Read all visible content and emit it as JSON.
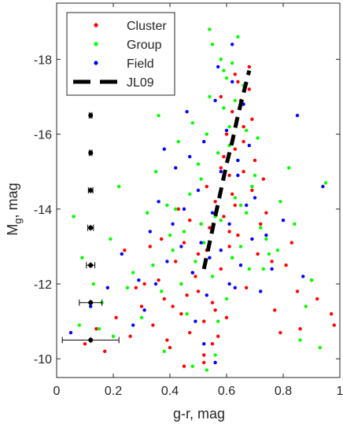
{
  "chart_data": {
    "type": "scatter",
    "xlabel": "g-r, mag",
    "ylabel_main": "M",
    "ylabel_sub": "g",
    "ylabel_tail": ", mag",
    "xlim": [
      0,
      1
    ],
    "ylim": [
      -9.5,
      -19.5
    ],
    "y_reversed": true,
    "xticks": [
      0,
      0.2,
      0.4,
      0.6,
      0.8,
      1
    ],
    "xtick_labels": [
      "0",
      "0.2",
      "0.4",
      "0.6",
      "0.8",
      "1"
    ],
    "yticks": [
      -10,
      -12,
      -14,
      -16,
      -18
    ],
    "ytick_labels": [
      "-10",
      "-12",
      "-14",
      "-16",
      "-18"
    ],
    "grid": false,
    "legend_position": "top-left",
    "series": [
      {
        "name": "Cluster",
        "marker": "dot",
        "color": "#ff0000",
        "x": [
          0.1,
          0.14,
          0.17,
          0.21,
          0.26,
          0.3,
          0.34,
          0.36,
          0.38,
          0.4,
          0.42,
          0.44,
          0.45,
          0.47,
          0.48,
          0.5,
          0.51,
          0.52,
          0.53,
          0.55,
          0.56,
          0.57,
          0.58,
          0.59,
          0.6,
          0.61,
          0.62,
          0.63,
          0.64,
          0.66,
          0.67,
          0.69,
          0.71,
          0.74,
          0.77,
          0.81,
          0.86,
          0.92,
          0.98,
          0.31,
          0.37,
          0.43,
          0.46,
          0.49,
          0.54,
          0.58,
          0.62,
          0.65,
          0.7,
          0.76,
          0.83,
          0.28,
          0.39,
          0.52,
          0.6,
          0.68,
          0.73,
          0.9,
          0.33,
          0.5,
          0.56,
          0.63,
          0.72,
          0.85,
          0.97,
          0.24,
          0.41,
          0.47,
          0.55,
          0.66,
          0.79,
          0.44,
          0.53,
          0.61,
          0.69,
          0.58,
          0.64,
          0.62,
          0.66,
          0.68,
          0.63,
          0.65,
          0.59,
          0.61,
          0.45,
          0.52
        ],
        "y": [
          -10.4,
          -10.8,
          -10.2,
          -11.1,
          -10.6,
          -11.4,
          -10.9,
          -12.1,
          -11.6,
          -10.3,
          -12.6,
          -11.2,
          -13.1,
          -10.7,
          -12.3,
          -11.8,
          -13.6,
          -10.1,
          -12.9,
          -11.5,
          -14.2,
          -10.6,
          -12.4,
          -13.8,
          -11.1,
          -14.9,
          -12.7,
          -15.6,
          -13.3,
          -16.2,
          -11.9,
          -14.5,
          -12.8,
          -13.9,
          -11.3,
          -12.5,
          -10.8,
          -11.6,
          -10.9,
          -12.0,
          -13.2,
          -14.0,
          -11.7,
          -12.2,
          -13.5,
          -15.1,
          -14.4,
          -16.8,
          -15.3,
          -12.6,
          -13.1,
          -11.9,
          -10.5,
          -11.0,
          -16.0,
          -17.2,
          -14.8,
          -12.1,
          -13.0,
          -12.8,
          -11.3,
          -17.6,
          -13.6,
          -11.8,
          -11.2,
          -12.9,
          -11.4,
          -13.7,
          -10.4,
          -15.0,
          -10.7,
          -12.0,
          -14.6,
          -13.4,
          -16.4,
          -17.0,
          -17.4,
          -16.6,
          -15.8,
          -17.8,
          -14.1,
          -16.9,
          -15.4,
          -13.0,
          -9.8,
          -9.9
        ]
      },
      {
        "name": "Group",
        "marker": "dot",
        "color": "#00ff00",
        "x": [
          0.06,
          0.09,
          0.13,
          0.16,
          0.19,
          0.22,
          0.27,
          0.32,
          0.35,
          0.37,
          0.39,
          0.41,
          0.43,
          0.45,
          0.46,
          0.48,
          0.49,
          0.51,
          0.52,
          0.54,
          0.55,
          0.57,
          0.58,
          0.59,
          0.6,
          0.62,
          0.63,
          0.64,
          0.65,
          0.67,
          0.68,
          0.7,
          0.72,
          0.75,
          0.79,
          0.84,
          0.9,
          0.95,
          0.08,
          0.25,
          0.34,
          0.4,
          0.47,
          0.5,
          0.53,
          0.56,
          0.61,
          0.66,
          0.71,
          0.78,
          0.88,
          0.2,
          0.3,
          0.42,
          0.58,
          0.63,
          0.74,
          0.93,
          0.36,
          0.55,
          0.6,
          0.69,
          0.82,
          0.15,
          0.44,
          0.51,
          0.57,
          0.62,
          0.67,
          0.86,
          0.38,
          0.48,
          0.64,
          0.73,
          0.54,
          0.59,
          0.61,
          0.65,
          0.56,
          0.53
        ],
        "y": [
          -13.8,
          -12.7,
          -12.0,
          -11.5,
          -13.2,
          -14.6,
          -12.3,
          -13.9,
          -15.0,
          -11.8,
          -14.1,
          -12.9,
          -15.8,
          -13.4,
          -11.2,
          -16.3,
          -12.6,
          -14.8,
          -13.1,
          -17.0,
          -12.2,
          -15.5,
          -13.7,
          -16.7,
          -11.6,
          -17.9,
          -14.3,
          -18.6,
          -13.0,
          -16.1,
          -12.4,
          -14.9,
          -13.5,
          -12.8,
          -14.2,
          -13.6,
          -12.1,
          -14.7,
          -10.9,
          -11.9,
          -12.5,
          -13.3,
          -14.4,
          -15.2,
          -16.0,
          -13.8,
          -15.7,
          -17.3,
          -15.9,
          -12.9,
          -11.4,
          -10.6,
          -11.1,
          -14.0,
          -18.0,
          -16.9,
          -13.2,
          -10.3,
          -16.5,
          -18.4,
          -17.5,
          -14.6,
          -15.1,
          -10.8,
          -12.0,
          -13.6,
          -11.0,
          -12.7,
          -13.9,
          -10.5,
          -10.2,
          -9.8,
          -15.3,
          -12.4,
          -18.8,
          -17.7,
          -16.2,
          -14.1,
          -10.1,
          -9.7
        ]
      },
      {
        "name": "Field",
        "marker": "dot",
        "color": "#0000ff",
        "x": [
          0.05,
          0.12,
          0.18,
          0.23,
          0.29,
          0.33,
          0.36,
          0.39,
          0.42,
          0.44,
          0.46,
          0.48,
          0.5,
          0.52,
          0.53,
          0.55,
          0.56,
          0.58,
          0.59,
          0.61,
          0.62,
          0.64,
          0.65,
          0.67,
          0.69,
          0.72,
          0.76,
          0.8,
          0.87,
          0.94,
          0.31,
          0.38,
          0.45,
          0.51,
          0.57,
          0.63,
          0.68,
          0.74,
          0.85,
          0.27,
          0.41,
          0.49,
          0.54,
          0.6,
          0.66,
          0.7,
          0.35,
          0.47,
          0.58,
          0.62,
          0.52,
          0.56,
          0.64,
          0.61
        ],
        "y": [
          -10.7,
          -11.4,
          -11.9,
          -12.8,
          -12.1,
          -13.4,
          -14.2,
          -12.6,
          -15.1,
          -13.0,
          -16.6,
          -12.3,
          -14.5,
          -15.8,
          -11.7,
          -13.9,
          -16.9,
          -12.9,
          -14.8,
          -13.6,
          -17.4,
          -15.3,
          -12.5,
          -14.1,
          -13.2,
          -11.8,
          -12.4,
          -13.7,
          -12.2,
          -14.6,
          -11.3,
          -15.6,
          -14.0,
          -13.1,
          -17.8,
          -11.9,
          -15.7,
          -13.3,
          -16.5,
          -10.9,
          -13.6,
          -11.0,
          -12.7,
          -16.1,
          -16.8,
          -14.3,
          -12.0,
          -15.4,
          -15.0,
          -18.4,
          -10.4,
          -9.9,
          -14.9,
          -12.0
        ]
      }
    ],
    "model_line": {
      "name": "JL09",
      "style": "dashed",
      "color": "#000000",
      "x": [
        0.52,
        0.54,
        0.56,
        0.58,
        0.6,
        0.62,
        0.64,
        0.66,
        0.68
      ],
      "y": [
        -12.4,
        -13.1,
        -13.8,
        -14.5,
        -15.2,
        -15.8,
        -16.5,
        -17.1,
        -17.7
      ]
    },
    "error_bars": {
      "color": "#000000",
      "points": [
        {
          "mag": -16.5,
          "x": 0.12,
          "x_err": 0.005,
          "y_err": 0.08
        },
        {
          "mag": -15.5,
          "x": 0.12,
          "x_err": 0.005,
          "y_err": 0.08
        },
        {
          "mag": -14.5,
          "x": 0.12,
          "x_err": 0.008,
          "y_err": 0.08
        },
        {
          "mag": -13.5,
          "x": 0.12,
          "x_err": 0.01,
          "y_err": 0.08
        },
        {
          "mag": -12.5,
          "x": 0.12,
          "x_err": 0.015,
          "y_err": 0.08
        },
        {
          "mag": -11.5,
          "x": 0.12,
          "x_err": 0.04,
          "y_err": 0.08
        },
        {
          "mag": -10.5,
          "x": 0.12,
          "x_err": 0.1,
          "y_err": 0.08
        }
      ]
    },
    "legend": [
      {
        "label": "Cluster",
        "color": "#ff0000",
        "kind": "dot"
      },
      {
        "label": "Group",
        "color": "#00ff00",
        "kind": "dot"
      },
      {
        "label": "Field",
        "color": "#0000ff",
        "kind": "dot"
      },
      {
        "label": "JL09",
        "color": "#000000",
        "kind": "dash"
      }
    ]
  }
}
